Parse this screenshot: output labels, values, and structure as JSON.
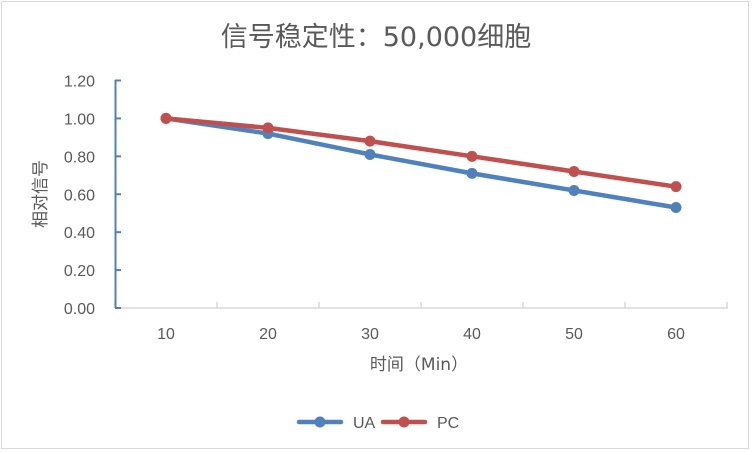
{
  "chart_data": {
    "type": "line",
    "title": "信号稳定性：50,000细胞",
    "xlabel": "时间（Min）",
    "ylabel": "相对信号",
    "categories": [
      "10",
      "20",
      "30",
      "40",
      "50",
      "60"
    ],
    "series": [
      {
        "name": "UA",
        "color": "#4f81bd",
        "values": [
          1.0,
          0.92,
          0.81,
          0.71,
          0.62,
          0.53
        ]
      },
      {
        "name": "PC",
        "color": "#c0504d",
        "values": [
          1.0,
          0.95,
          0.88,
          0.8,
          0.72,
          0.64
        ]
      }
    ],
    "yticks": [
      "0.00",
      "0.20",
      "0.40",
      "0.60",
      "0.80",
      "1.00",
      "1.20"
    ],
    "ylim": [
      0,
      1.2
    ],
    "grid": false,
    "legend_position": "bottom"
  }
}
